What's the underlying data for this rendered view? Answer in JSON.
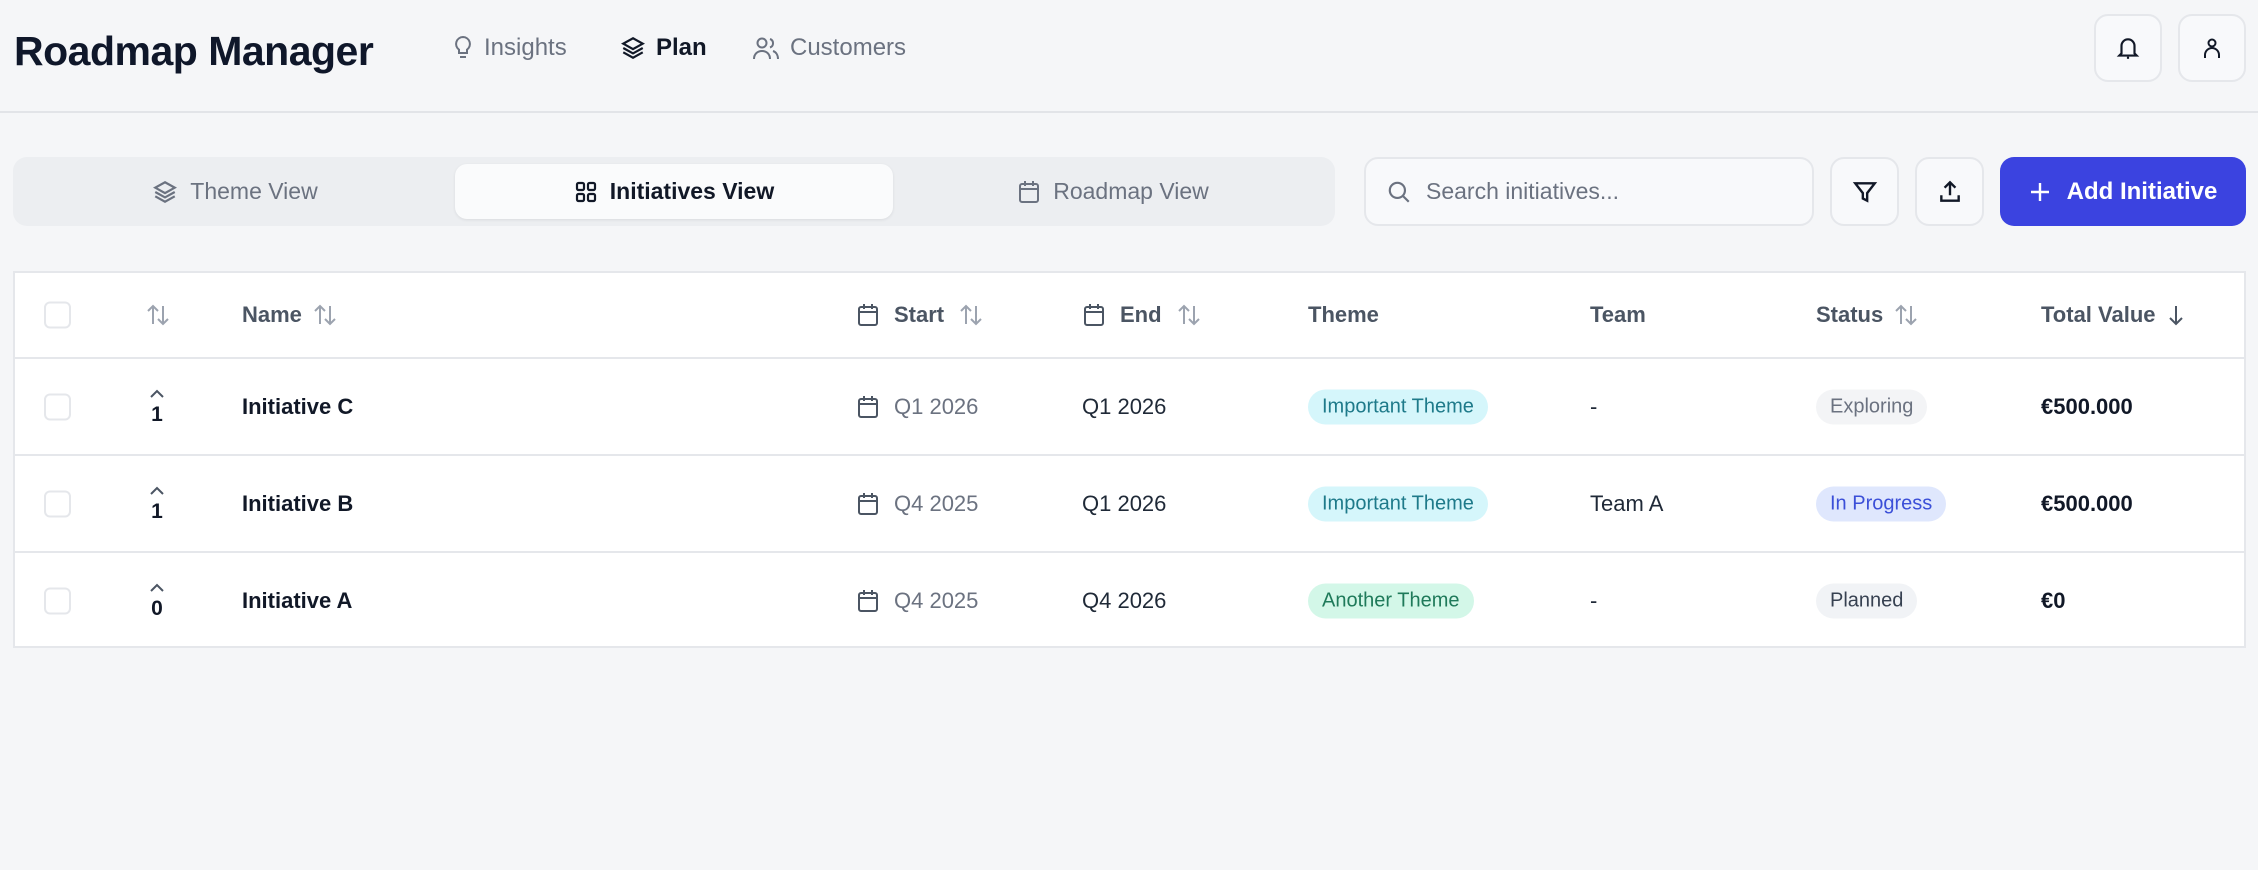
{
  "app": {
    "title": "Roadmap Manager"
  },
  "nav": [
    {
      "label": "Insights",
      "icon": "lightbulb-icon",
      "active": false
    },
    {
      "label": "Plan",
      "icon": "layers-icon",
      "active": true
    },
    {
      "label": "Customers",
      "icon": "users-icon",
      "active": false
    }
  ],
  "header_actions": {
    "notifications": "bell-icon",
    "profile": "user-icon"
  },
  "views": [
    {
      "label": "Theme View",
      "icon": "layers-icon",
      "active": false
    },
    {
      "label": "Initiatives View",
      "icon": "grid-icon",
      "active": true
    },
    {
      "label": "Roadmap View",
      "icon": "calendar-icon",
      "active": false
    }
  ],
  "search": {
    "placeholder": "Search initiatives...",
    "value": ""
  },
  "toolbar": {
    "filter": "filter-icon",
    "export": "upload-icon",
    "add_label": "Add Initiative"
  },
  "colors": {
    "accent": "#3b43e0",
    "theme_important_bg": "#d5f6fb",
    "theme_important_fg": "#1e7a8a",
    "theme_another_bg": "#d3f7e8",
    "theme_another_fg": "#1f7a5a",
    "status_inprogress_bg": "#dfe7fd",
    "status_inprogress_fg": "#3b4fd8"
  },
  "table": {
    "columns": {
      "name": "Name",
      "start": "Start",
      "end": "End",
      "theme": "Theme",
      "team": "Team",
      "status": "Status",
      "total": "Total Value"
    },
    "sort": {
      "column": "Total Value",
      "direction": "descending"
    },
    "rows": [
      {
        "votes": "1",
        "name": "Initiative C",
        "start": "Q1 2026",
        "end": "Q1 2026",
        "theme": "Important Theme",
        "team": "-",
        "status": "Exploring",
        "total": "€500.000"
      },
      {
        "votes": "1",
        "name": "Initiative B",
        "start": "Q4 2025",
        "end": "Q1 2026",
        "theme": "Important Theme",
        "team": "Team A",
        "status": "In Progress",
        "total": "€500.000"
      },
      {
        "votes": "0",
        "name": "Initiative A",
        "start": "Q4 2025",
        "end": "Q4 2026",
        "theme": "Another Theme",
        "team": "-",
        "status": "Planned",
        "total": "€0"
      }
    ]
  }
}
